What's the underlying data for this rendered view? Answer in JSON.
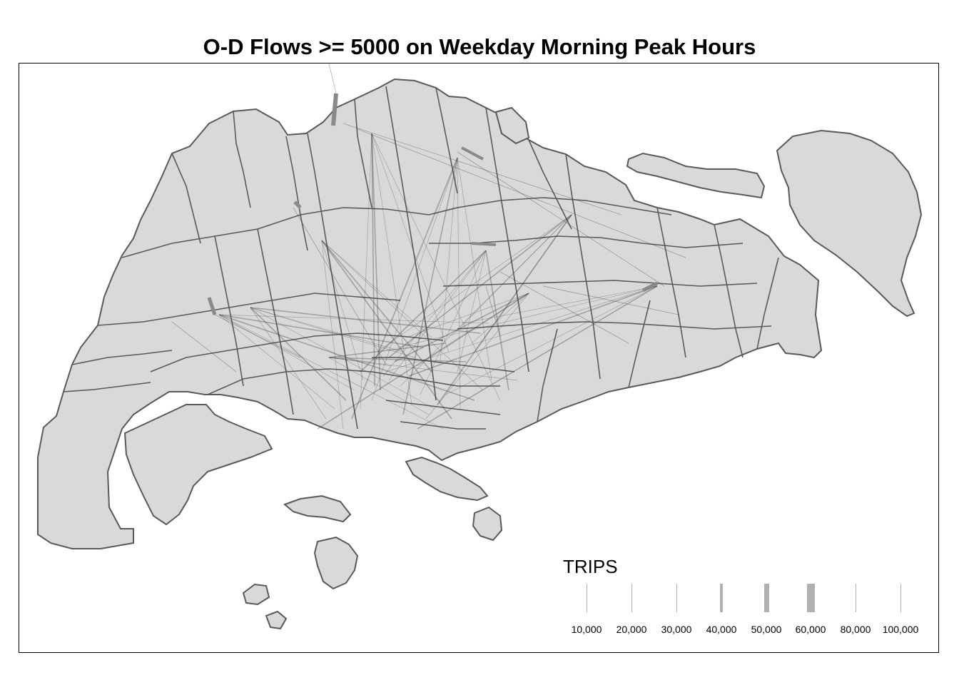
{
  "title": "O-D Flows >= 5000 on Weekday Morning Peak Hours",
  "map": {
    "land_fill": "#d9d9d9",
    "boundary_stroke": "#595959",
    "flow_color": "#3a3a3a",
    "background": "#ffffff"
  },
  "legend": {
    "title": "TRIPS",
    "items": [
      {
        "label": "10,000",
        "width": 1
      },
      {
        "label": "20,000",
        "width": 1
      },
      {
        "label": "30,000",
        "width": 1
      },
      {
        "label": "40,000",
        "width": 4
      },
      {
        "label": "50,000",
        "width": 7
      },
      {
        "label": "60,000",
        "width": 11
      },
      {
        "label": "80,000",
        "width": 1
      },
      {
        "label": "100,000",
        "width": 1
      }
    ]
  }
}
